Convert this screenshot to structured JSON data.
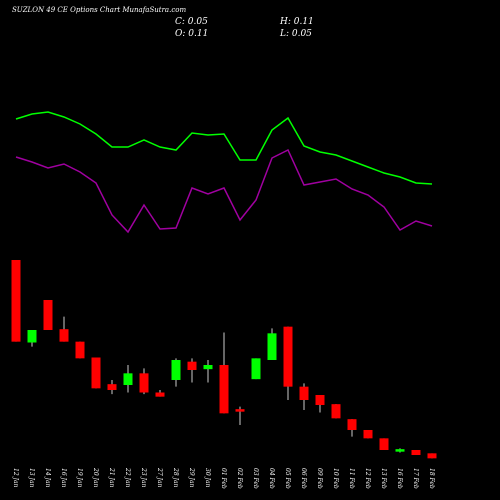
{
  "chart_data": {
    "type": "candlestick",
    "title": "SUZLON 49 CE Options Chart MunafaSutra.com",
    "ohlc_text": {
      "close": "C: 0.05",
      "high": "H: 0.11",
      "open": "O: 0.11",
      "low": "L: 0.05"
    },
    "x": [
      "12 Jan",
      "13 Jan",
      "14 Jan",
      "16 Jan",
      "19 Jan",
      "20 Jan",
      "21 Jan",
      "22 Jan",
      "23 Jan",
      "27 Jan",
      "28 Jan",
      "29 Jan",
      "30 Jan",
      "01 Feb",
      "02 Feb",
      "03 Feb",
      "04 Feb",
      "05 Feb",
      "06 Feb",
      "09 Feb",
      "10 Feb",
      "11 Feb",
      "12 Feb",
      "13 Feb",
      "16 Feb",
      "17 Feb",
      "18 Feb"
    ],
    "open": [
      2.43,
      1.44,
      1.95,
      1.6,
      1.45,
      1.26,
      0.94,
      0.93,
      1.07,
      0.84,
      0.99,
      1.21,
      1.12,
      1.17,
      0.64,
      1.0,
      1.23,
      1.63,
      0.91,
      0.81,
      0.7,
      0.52,
      0.39,
      0.29,
      0.13,
      0.15,
      0.11
    ],
    "high": [
      2.43,
      1.59,
      1.95,
      1.75,
      1.45,
      1.26,
      0.99,
      1.17,
      1.13,
      0.87,
      1.25,
      1.25,
      1.23,
      1.56,
      0.67,
      1.25,
      1.61,
      1.63,
      0.95,
      0.81,
      0.7,
      0.52,
      0.39,
      0.29,
      0.17,
      0.15,
      0.11
    ],
    "low": [
      1.45,
      1.39,
      1.59,
      1.45,
      1.25,
      0.89,
      0.82,
      0.84,
      0.82,
      0.79,
      0.91,
      0.96,
      0.96,
      0.59,
      0.45,
      1.0,
      1.23,
      0.75,
      0.63,
      0.6,
      0.53,
      0.31,
      0.29,
      0.15,
      0.12,
      0.09,
      0.05
    ],
    "close": [
      1.45,
      1.59,
      1.59,
      1.45,
      1.25,
      0.89,
      0.87,
      1.07,
      0.84,
      0.79,
      1.23,
      1.11,
      1.17,
      0.59,
      0.61,
      1.25,
      1.55,
      0.91,
      0.75,
      0.69,
      0.53,
      0.39,
      0.29,
      0.15,
      0.16,
      0.09,
      0.05
    ],
    "up_color": "#00ff00",
    "down_color": "#ff0000",
    "ylim": [
      -0.09,
      2.91
    ],
    "indicator_ylim": [
      50,
      200
    ],
    "indicator_series": [
      {
        "color": "#00ff00",
        "values": [
          181,
          186,
          188,
          183,
          176,
          166,
          153,
          153,
          160,
          153,
          150,
          167,
          165,
          166,
          140,
          140,
          170,
          182,
          154,
          148,
          145,
          139,
          133,
          127,
          123,
          117,
          116
        ]
      },
      {
        "color": "#a000a0",
        "values": [
          143,
          138,
          132,
          136,
          128,
          117,
          85,
          68,
          95,
          71,
          72,
          112,
          106,
          112,
          80,
          100,
          142,
          150,
          115,
          118,
          121,
          111,
          105,
          93,
          70,
          79,
          74
        ]
      }
    ]
  }
}
